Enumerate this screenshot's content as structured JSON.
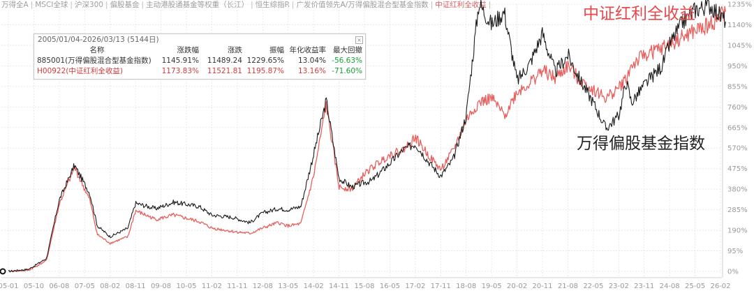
{
  "toolbar": {
    "items": [
      "万得全A",
      "MSCI全球",
      "沪深300",
      "偏股基金",
      "主动港股通基金等权重（长江）",
      "恒生综指R",
      "广发价值领先A/万得偏股混合型基金指数",
      "中证红利全收益"
    ],
    "active_index": 7
  },
  "stats_box": {
    "title": "2005/01/04-2026/03/13 (5144日)",
    "headers": [
      "名称",
      "涨跌幅",
      "涨跌",
      "振幅",
      "年化收益率",
      "最大回撤"
    ],
    "rows": [
      {
        "name": "885001(万得偏股混合型基金指数)",
        "pct": "1145.91%",
        "chg": "11489.24",
        "amp": "1229.65%",
        "annual": "13.04%",
        "mdd": "-56.63%",
        "color": "#333333"
      },
      {
        "name": "H00922(中证红利全收益)",
        "pct": "1173.83%",
        "chg": "11521.81",
        "amp": "1195.87%",
        "annual": "13.16%",
        "mdd": "-71.60%",
        "color": "#d93a3a"
      }
    ]
  },
  "annotations": {
    "red_label": "中证红利全收益",
    "black_label": "万得偏股基金指数"
  },
  "colors": {
    "black_series": "#1c1c1c",
    "red_series": "#e8605e",
    "grid": "#e3e3e3",
    "axis_text": "#999999"
  },
  "chart_data": {
    "type": "line",
    "y_unit": "% cumulative return",
    "ylim": [
      -30,
      1260
    ],
    "y_ticks": [
      "0%",
      "95%",
      "190%",
      "285%",
      "380%",
      "475%",
      "570%",
      "665%",
      "760%",
      "855%",
      "950%",
      "1045%",
      "1140%",
      "1235%"
    ],
    "y_tick_values": [
      0,
      95,
      190,
      285,
      380,
      475,
      570,
      665,
      760,
      855,
      950,
      1045,
      1140,
      1235
    ],
    "x_ticks": [
      "05-01",
      "05-10",
      "06-08",
      "07-05",
      "08-02",
      "08-11",
      "09-08",
      "10-05",
      "11-02",
      "11-11",
      "12-08",
      "13-05",
      "14-02",
      "14-11",
      "15-08",
      "16-05",
      "17-02",
      "17-11",
      "18-08",
      "19-05",
      "20-02",
      "20-11",
      "21-08",
      "22-05",
      "23-02",
      "23-11",
      "24-08",
      "25-05",
      "26-02"
    ],
    "series": [
      {
        "name": "885001(万得偏股混合型基金指数)",
        "color": "#1c1c1c",
        "x": [
          0,
          0.8,
          1.5,
          2,
          2.6,
          3.2,
          3.5,
          4,
          4.7,
          5,
          5.8,
          6.5,
          7.5,
          8,
          8.8,
          9.5,
          10,
          10.6,
          11,
          11.5,
          12,
          12.5,
          13,
          13.5,
          14,
          14.3,
          15,
          15.5,
          16,
          16.5,
          17,
          17.5,
          18,
          18.5,
          19,
          19.5,
          20,
          20.5,
          21,
          21.5,
          22,
          22.5,
          23,
          23.5,
          24,
          24.3,
          24.5,
          25,
          25.7,
          26,
          26.5,
          27,
          27.6,
          28,
          28.2
        ],
        "y": [
          0,
          10,
          60,
          330,
          490,
          360,
          210,
          160,
          200,
          315,
          290,
          320,
          300,
          260,
          250,
          225,
          270,
          290,
          285,
          300,
          540,
          790,
          430,
          390,
          410,
          420,
          500,
          560,
          590,
          510,
          440,
          520,
          720,
          1240,
          1140,
          1200,
          880,
          960,
          1100,
          920,
          1000,
          880,
          780,
          660,
          720,
          880,
          780,
          860,
          950,
          1050,
          1150,
          1210,
          1230,
          1180,
          1160
        ]
      },
      {
        "name": "H00922(中证红利全收益)",
        "color": "#e8605e",
        "x": [
          0,
          0.8,
          1.5,
          2,
          2.6,
          3.2,
          3.5,
          4,
          4.7,
          5,
          5.8,
          6.5,
          7.5,
          8,
          8.8,
          9.5,
          10,
          10.6,
          11,
          11.5,
          12,
          12.5,
          13,
          13.5,
          14,
          14.3,
          15,
          15.5,
          16,
          16.5,
          17,
          17.5,
          18,
          18.5,
          19,
          19.5,
          20,
          20.5,
          21,
          21.5,
          22,
          22.5,
          23,
          23.5,
          24,
          24.3,
          24.5,
          25,
          25.7,
          26,
          26.5,
          27,
          27.6,
          28,
          28.2
        ],
        "y": [
          0,
          5,
          50,
          310,
          480,
          330,
          170,
          130,
          160,
          280,
          240,
          260,
          230,
          200,
          185,
          175,
          200,
          225,
          210,
          220,
          440,
          770,
          390,
          380,
          450,
          480,
          540,
          560,
          620,
          540,
          470,
          560,
          700,
          780,
          800,
          720,
          830,
          870,
          930,
          890,
          950,
          880,
          840,
          800,
          850,
          890,
          950,
          1000,
          1030,
          1050,
          1080,
          1110,
          1140,
          1180,
          1200
        ]
      }
    ]
  }
}
